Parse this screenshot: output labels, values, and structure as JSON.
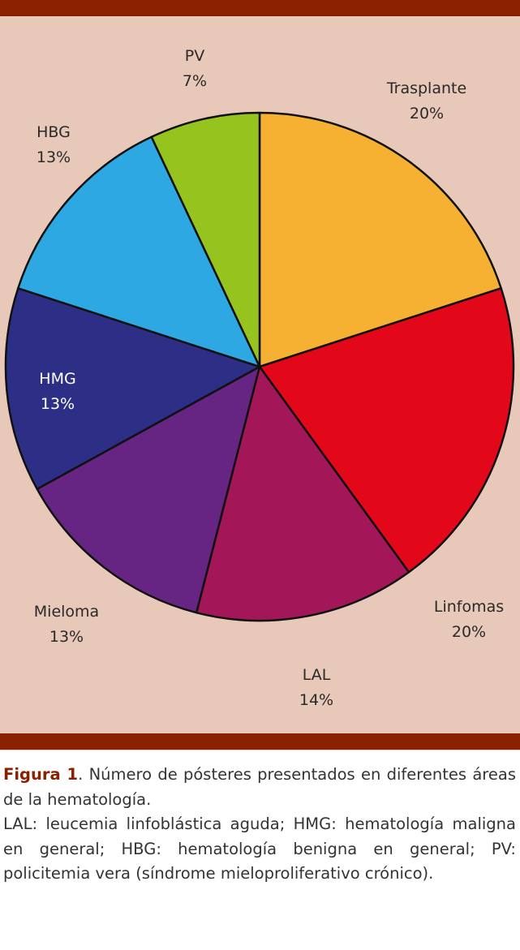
{
  "chart_data": {
    "type": "pie",
    "slices": [
      {
        "label": "Trasplante",
        "value": 20,
        "percent_label": "20%",
        "color": "#f7b132"
      },
      {
        "label": "Linfomas",
        "value": 20,
        "percent_label": "20%",
        "color": "#e2081a"
      },
      {
        "label": "LAL",
        "value": 14,
        "percent_label": "14%",
        "color": "#a31759"
      },
      {
        "label": "Mieloma",
        "value": 13,
        "percent_label": "13%",
        "color": "#662483"
      },
      {
        "label": "HMG",
        "value": 13,
        "percent_label": "13%",
        "color": "#2d2f87"
      },
      {
        "label": "HBG",
        "value": 13,
        "percent_label": "13%",
        "color": "#2da8e3"
      },
      {
        "label": "PV",
        "value": 7,
        "percent_label": "7%",
        "color": "#97c31f"
      }
    ]
  },
  "caption": {
    "figure_label": "Figura 1",
    "title_text": ". Número de pósteres presentados en diferentes áreas de la hematología.",
    "abbreviations": "LAL: leucemia linfoblástica aguda; HMG: hematología maligna en general; HBG: hematología benigna en general; PV: policitemia vera (síndrome mieloproliferativo crónico)."
  },
  "colors": {
    "background": "#e8c8b8",
    "rule": "#8b2000"
  }
}
